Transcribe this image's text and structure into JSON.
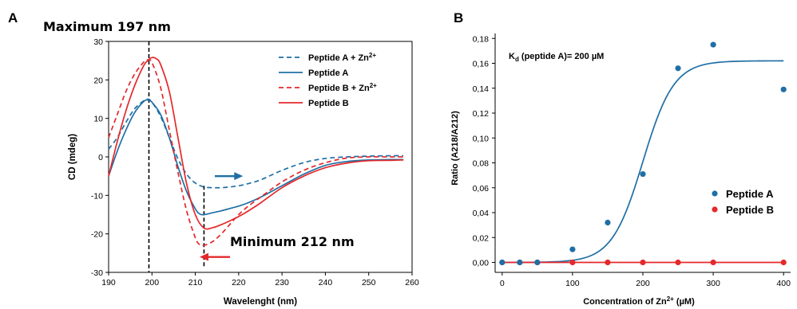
{
  "colors": {
    "blue": "#1f6fa5",
    "red": "#e5282b",
    "black": "#000000"
  },
  "panel_a": {
    "letter": "A",
    "maximum_label": "Maximum 197 nm",
    "minimum_label": "Minimum  212 nm",
    "xlabel": "Wavelenght (nm)",
    "ylabel": "CD (mdeg)",
    "legend": [
      {
        "text": "Peptide A + Zn",
        "sup": "2+",
        "color": "#1f6fa5",
        "dashed": true
      },
      {
        "text": "Peptide A",
        "sup": "",
        "color": "#1f6fa5",
        "dashed": false
      },
      {
        "text": "Peptide B + Zn",
        "sup": "2+",
        "color": "#e5282b",
        "dashed": true
      },
      {
        "text": "Peptide B",
        "sup": "",
        "color": "#e5282b",
        "dashed": false
      }
    ]
  },
  "panel_b": {
    "letter": "B",
    "kd_prefix": "K",
    "kd_sub": "d",
    "kd_rest": " (peptide A)= 200 µM",
    "ylabel": "Ratio (A218/A212)",
    "xlabel_prefix": "Concentration of Zn",
    "xlabel_sup": "2+",
    "xlabel_suffix": " (µM)",
    "legend": [
      {
        "text": "Peptide A",
        "color": "#1f6fa5"
      },
      {
        "text": "Peptide B",
        "color": "#e5282b"
      }
    ]
  },
  "chart_data": [
    {
      "type": "line",
      "xlabel": "Wavelenght (nm)",
      "ylabel": "CD (mdeg)",
      "xlim": [
        190,
        260
      ],
      "ylim": [
        -30,
        30
      ],
      "xticks": [
        190,
        200,
        210,
        220,
        230,
        240,
        250,
        260
      ],
      "yticks": [
        -30,
        -20,
        -10,
        0,
        10,
        20,
        30
      ],
      "grid": false,
      "legend_position": "top-right",
      "series": [
        {
          "name": "Peptide A + Zn2+",
          "color": "#1f6fa5",
          "dash": true,
          "x": [
            190,
            192,
            194,
            196,
            198,
            199,
            200,
            202,
            204,
            206,
            208,
            210,
            212,
            214,
            216,
            218,
            220,
            222,
            225,
            230,
            235,
            240,
            245,
            250,
            255,
            258
          ],
          "y": [
            2,
            5,
            9,
            12.5,
            14.5,
            15,
            14.2,
            10.5,
            5,
            -0.5,
            -4.5,
            -6.8,
            -7.8,
            -8,
            -8,
            -7.8,
            -7.5,
            -7,
            -6,
            -3.5,
            -1.5,
            -0.4,
            0,
            0.2,
            0.3,
            0.3
          ]
        },
        {
          "name": "Peptide A",
          "color": "#1f6fa5",
          "dash": false,
          "x": [
            190,
            192,
            194,
            196,
            198,
            199,
            200,
            202,
            204,
            206,
            208,
            210,
            211,
            212,
            214,
            216,
            218,
            220,
            222,
            225,
            230,
            235,
            240,
            245,
            250,
            255,
            258
          ],
          "y": [
            -5,
            1.5,
            7,
            11.5,
            14.3,
            14.8,
            14.2,
            11,
            5,
            -2.5,
            -9,
            -13.5,
            -14.8,
            -15,
            -14.5,
            -14,
            -13.4,
            -12.8,
            -12,
            -10.5,
            -7.5,
            -4.5,
            -2.2,
            -1.2,
            -0.8,
            -0.7,
            -0.7
          ]
        },
        {
          "name": "Peptide B + Zn2+",
          "color": "#e5282b",
          "dash": true,
          "x": [
            190,
            192,
            194,
            196,
            198,
            199,
            200,
            202,
            204,
            206,
            208,
            210,
            211,
            212,
            214,
            216,
            218,
            220,
            222,
            225,
            230,
            235,
            240,
            245,
            250,
            255,
            258
          ],
          "y": [
            5,
            11,
            17,
            21.5,
            24.5,
            25.2,
            24.5,
            18,
            7,
            -4,
            -14,
            -21,
            -22.8,
            -23,
            -22,
            -20,
            -17.5,
            -15,
            -13,
            -10.5,
            -6.5,
            -3.5,
            -1.5,
            -0.3,
            0,
            0,
            0
          ]
        },
        {
          "name": "Peptide B",
          "color": "#e5282b",
          "dash": false,
          "x": [
            190,
            192,
            194,
            196,
            198,
            199,
            200,
            201,
            202,
            204,
            206,
            208,
            210,
            212,
            214,
            216,
            218,
            220,
            222,
            225,
            230,
            235,
            240,
            245,
            250,
            255,
            258
          ],
          "y": [
            -5,
            4,
            12,
            18.5,
            23.5,
            25,
            25.8,
            25.5,
            24,
            17,
            5,
            -7,
            -15,
            -18.5,
            -18.4,
            -17.6,
            -16.6,
            -15.5,
            -14.2,
            -12,
            -8,
            -5,
            -2.8,
            -1.6,
            -1,
            -0.9,
            -0.8
          ]
        }
      ],
      "annotations": [
        {
          "type": "vline",
          "x": 199.3,
          "style": "dashed",
          "color": "#000000"
        },
        {
          "type": "vline",
          "x": 212,
          "style": "dashed",
          "color": "#000000",
          "from_y": -29,
          "to_y": -7.5
        },
        {
          "type": "arrow",
          "direction": "right",
          "color": "#1f6fa5",
          "x_from": 214.5,
          "x_to": 221,
          "y": -5
        },
        {
          "type": "arrow",
          "direction": "left",
          "color": "#e5282b",
          "x_from": 218,
          "x_to": 211,
          "y": -26
        }
      ]
    },
    {
      "type": "scatter",
      "xlabel": "Concentration of Zn2+ (µM)",
      "ylabel": "Ratio (A218/A212)",
      "xlim": [
        -10,
        410
      ],
      "ylim": [
        -0.008,
        0.184
      ],
      "xticks": [
        0,
        100,
        200,
        300,
        400
      ],
      "yticks": [
        0.0,
        0.02,
        0.04,
        0.06,
        0.08,
        0.1,
        0.12,
        0.14,
        0.16,
        0.18
      ],
      "ytick_labels": [
        "0,00",
        "0,02",
        "0,04",
        "0,06",
        "0,08",
        "0,10",
        "0,12",
        "0,14",
        "0,16",
        "0,18"
      ],
      "grid": false,
      "legend_position": "right",
      "series": [
        {
          "name": "Peptide A",
          "color": "#1f6fa5",
          "x": [
            0,
            25,
            50,
            100,
            150,
            200,
            250,
            300,
            400
          ],
          "y": [
            0,
            0,
            0,
            0.0105,
            0.032,
            0.071,
            0.156,
            0.175,
            0.139
          ]
        },
        {
          "name": "Peptide B",
          "color": "#e5282b",
          "x": [
            0,
            25,
            50,
            100,
            150,
            200,
            250,
            300,
            400
          ],
          "y": [
            0,
            0,
            0,
            0,
            0,
            0,
            0,
            0,
            0
          ]
        }
      ],
      "fits": [
        {
          "series": "Peptide A",
          "model": "sigmoid",
          "top": 0.162,
          "x50": 200,
          "slope": 22,
          "color": "#1f6fa5"
        },
        {
          "series": "Peptide B",
          "model": "constant",
          "value": 0,
          "color": "#e5282b"
        }
      ]
    }
  ]
}
